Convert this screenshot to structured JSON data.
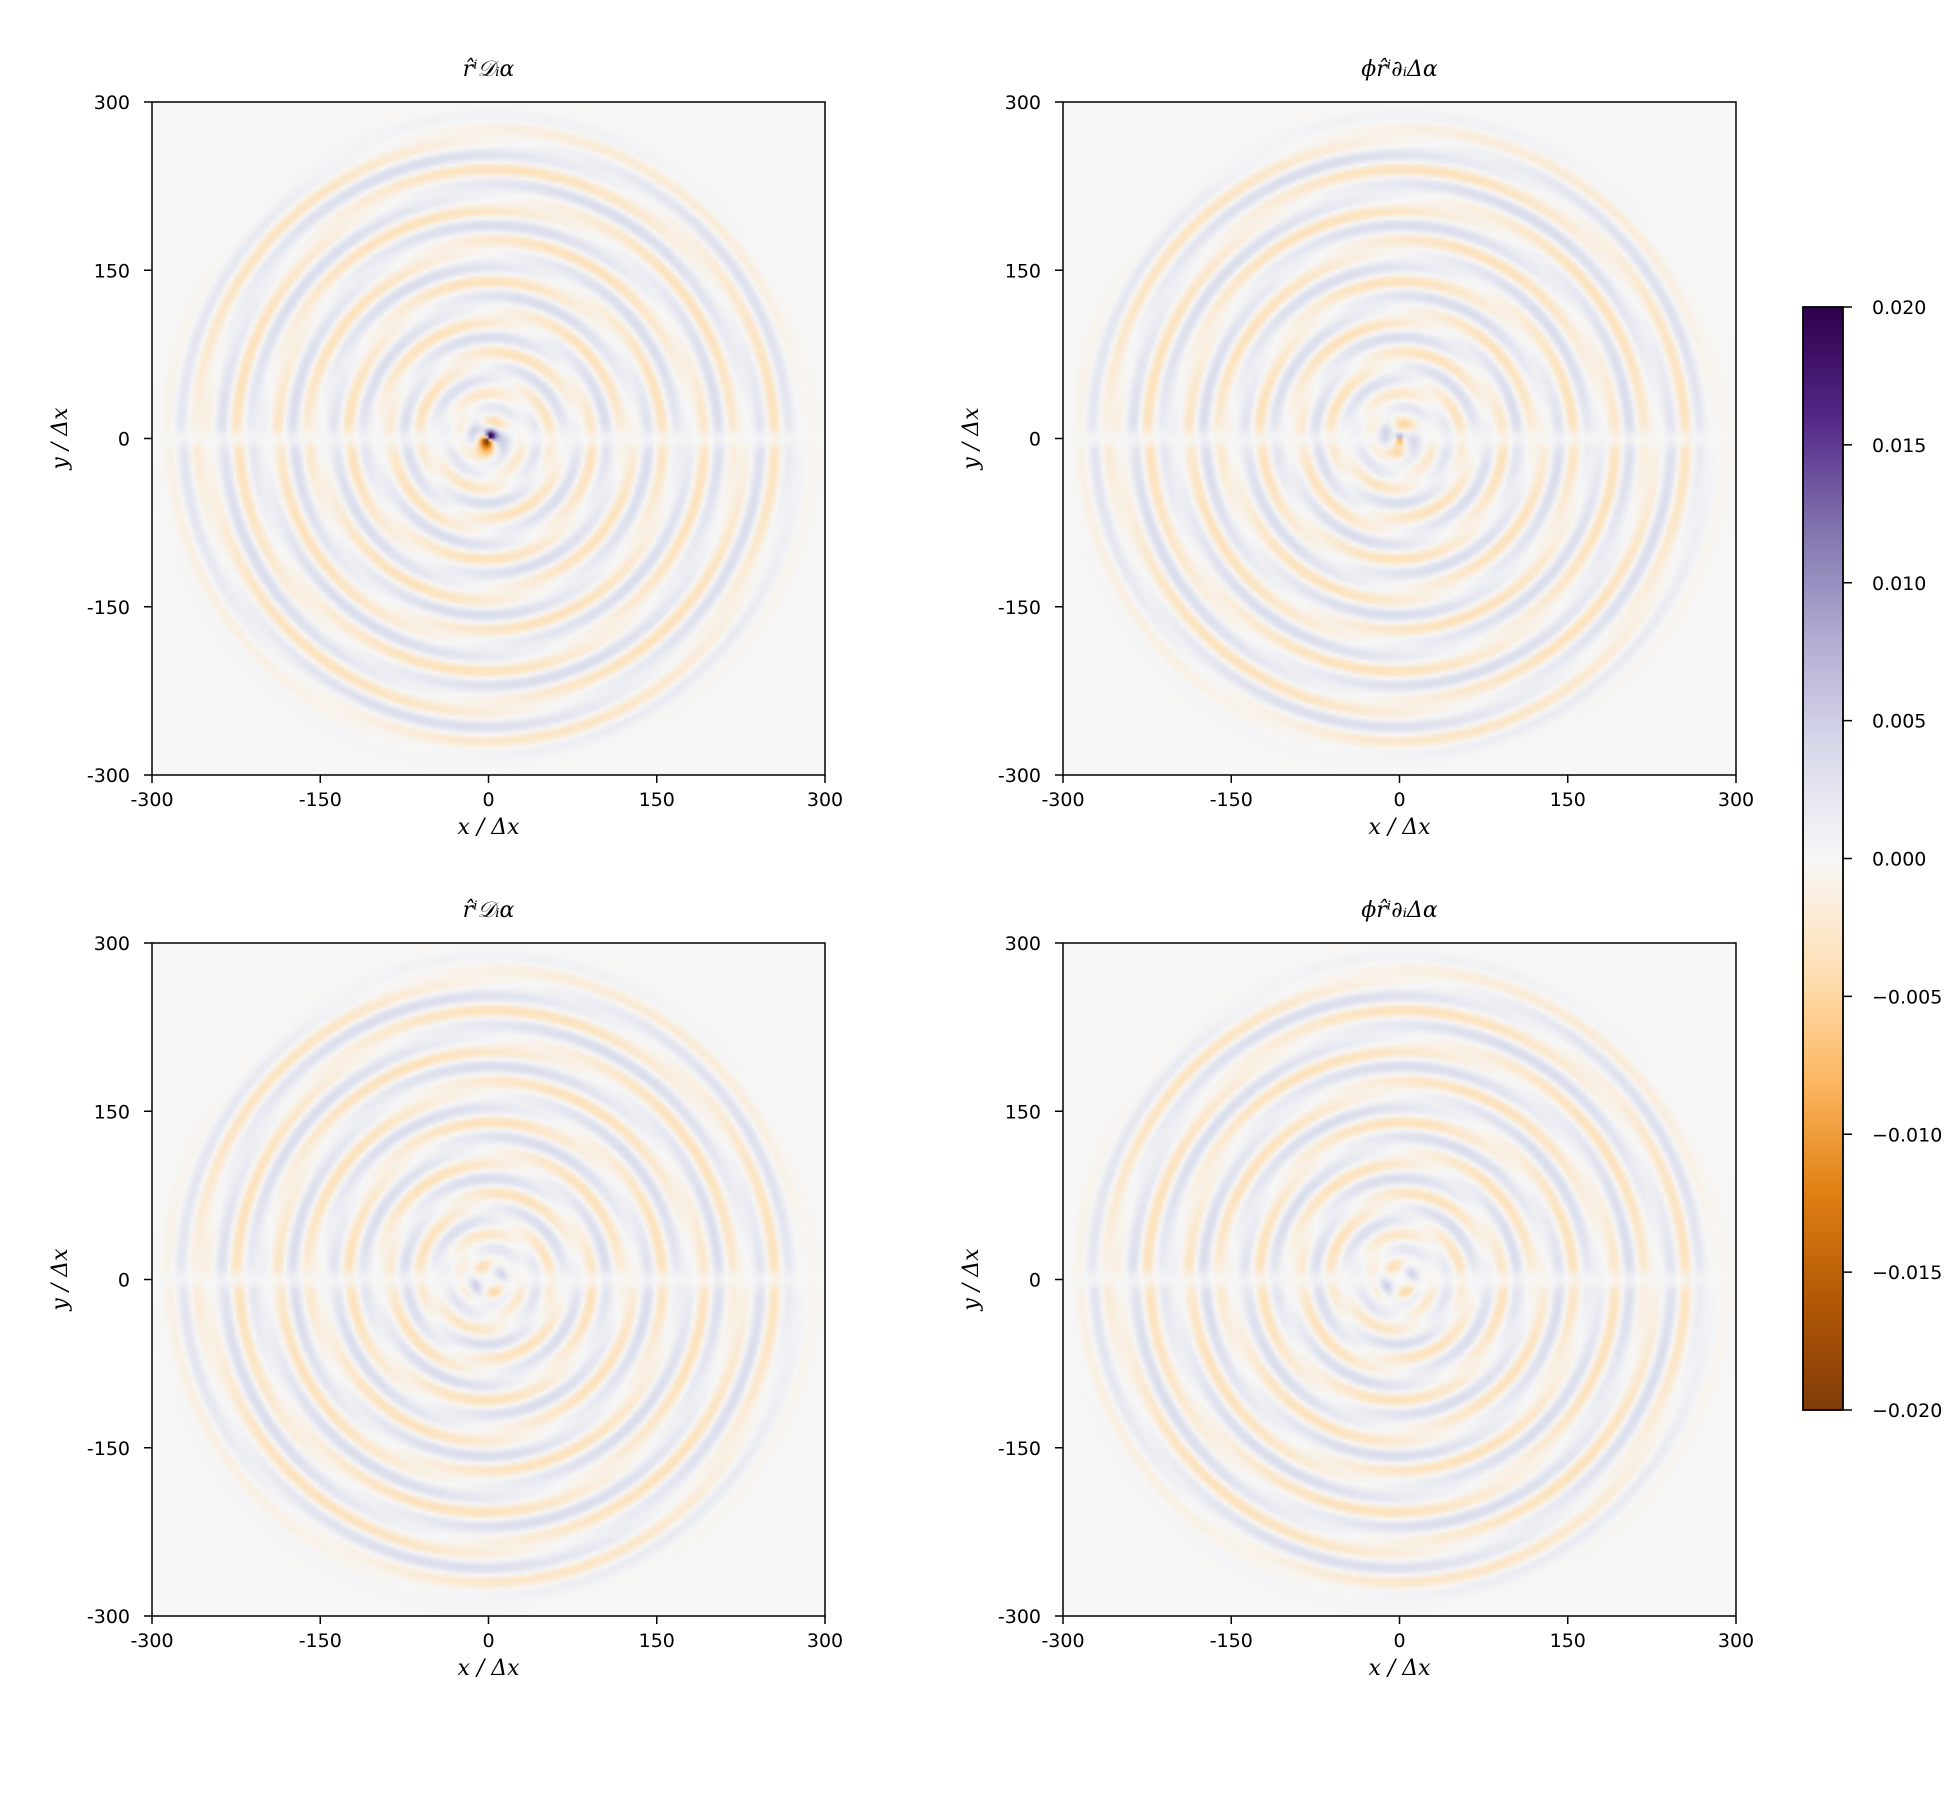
{
  "chart_data": [
    {
      "type": "heatmap",
      "title": "r̂ⁱ𝒟ᵢα",
      "xlabel": "x / Δx",
      "ylabel": "y / Δx",
      "xlim": [
        -300,
        300
      ],
      "ylim": [
        -300,
        300
      ],
      "xticks": [
        "-300",
        "-150",
        "0",
        "150",
        "300"
      ],
      "yticks": [
        "300",
        "150",
        "0",
        "-150",
        "-300"
      ],
      "pattern": {
        "wave_extent": 280,
        "ring_wavelength": 33,
        "amplitude": 0.0028,
        "core_amplitude": 0.02,
        "core_type": "dipole"
      }
    },
    {
      "type": "heatmap",
      "title": "ϕr̂ⁱ∂ᵢΔα",
      "xlabel": "x / Δx",
      "ylabel": "y / Δx",
      "xlim": [
        -300,
        300
      ],
      "ylim": [
        -300,
        300
      ],
      "xticks": [
        "-300",
        "-150",
        "0",
        "150",
        "300"
      ],
      "yticks": [
        "300",
        "150",
        "0",
        "-150",
        "-300"
      ],
      "pattern": {
        "wave_extent": 280,
        "ring_wavelength": 33,
        "amplitude": 0.0028,
        "core_amplitude": 0.012,
        "core_type": "small"
      }
    },
    {
      "type": "heatmap",
      "title": "r̂ⁱ𝒟ᵢα",
      "xlabel": "x / Δx",
      "ylabel": "y / Δx",
      "xlim": [
        -300,
        300
      ],
      "ylim": [
        -300,
        300
      ],
      "xticks": [
        "-300",
        "-150",
        "0",
        "150",
        "300"
      ],
      "yticks": [
        "300",
        "150",
        "0",
        "-150",
        "-300"
      ],
      "pattern": {
        "wave_extent": 280,
        "ring_wavelength": 33,
        "amplitude": 0.0028,
        "core_amplitude": 0.007,
        "core_type": "hole"
      }
    },
    {
      "type": "heatmap",
      "title": "ϕr̂ⁱ∂ᵢΔα",
      "xlabel": "x / Δx",
      "ylabel": "y / Δx",
      "xlim": [
        -300,
        300
      ],
      "ylim": [
        -300,
        300
      ],
      "xticks": [
        "-300",
        "-150",
        "0",
        "150",
        "300"
      ],
      "yticks": [
        "300",
        "150",
        "0",
        "-150",
        "-300"
      ],
      "pattern": {
        "wave_extent": 280,
        "ring_wavelength": 33,
        "amplitude": 0.0028,
        "core_amplitude": 0.007,
        "core_type": "hole"
      }
    }
  ],
  "colorbar": {
    "colormap": "PuOr",
    "range": [
      -0.02,
      0.02
    ],
    "ticks": [
      "0.020",
      "0.015",
      "0.010",
      "0.005",
      "0.000",
      "−0.005",
      "−0.010",
      "−0.015",
      "−0.020"
    ],
    "colors": {
      "max": "#2d004b",
      "high": "#542788",
      "mid_high": "#8073ac",
      "low_pos": "#b2abd2",
      "faint_pos": "#d8daeb",
      "zero": "#f7f7f7",
      "faint_neg": "#fee0b6",
      "low_neg": "#fdb863",
      "mid_low": "#e08214",
      "low": "#b35806",
      "min": "#7f3b08"
    }
  }
}
